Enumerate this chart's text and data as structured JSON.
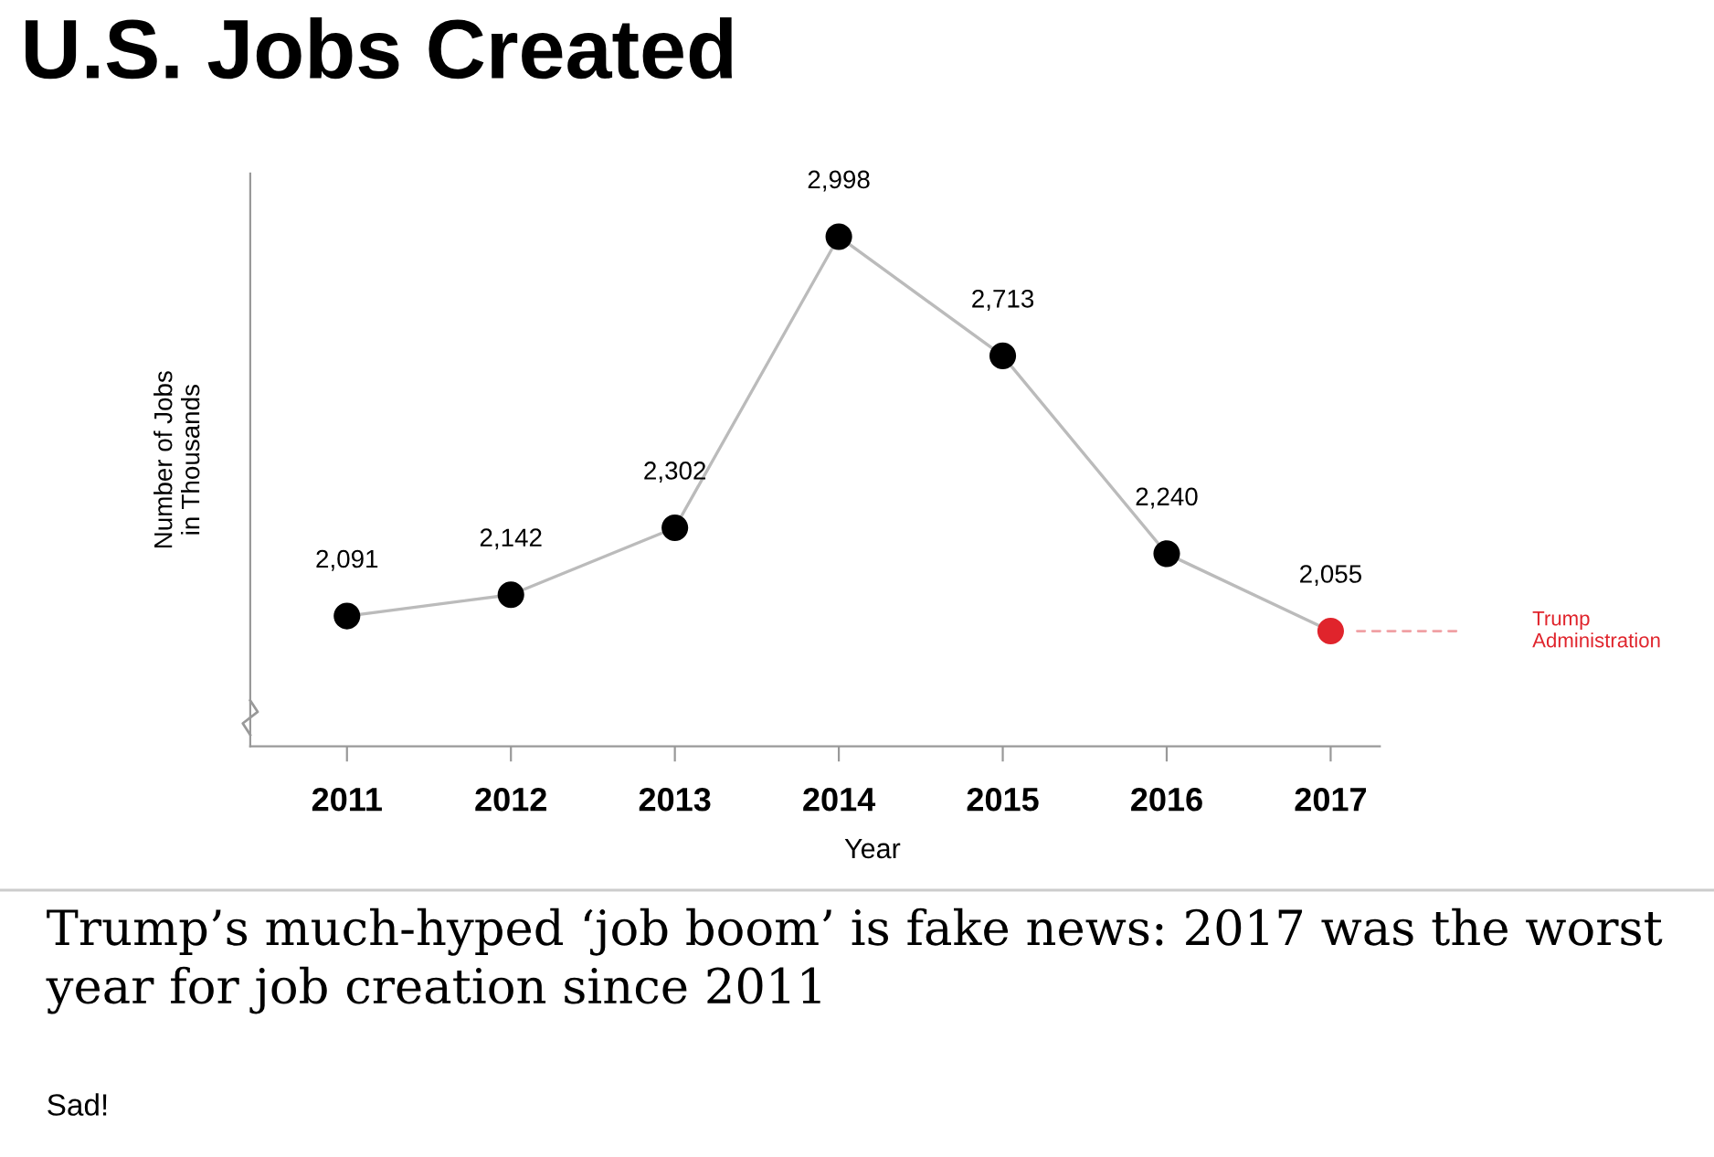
{
  "chart_data": {
    "type": "line",
    "title": "U.S. Jobs Created",
    "xlabel": "Year",
    "ylabel": "Number of Jobs\nin Thousands",
    "categories": [
      "2011",
      "2012",
      "2013",
      "2014",
      "2015",
      "2016",
      "2017"
    ],
    "series": [
      {
        "color": "#bbbbbb",
        "values": [
          2091,
          2142,
          2302,
          2998,
          2713,
          2240,
          2055
        ],
        "colors": [
          "#000000",
          "#000000",
          "#000000",
          "#000000",
          "#000000",
          "#000000",
          "#e0242c"
        ],
        "value_labels": [
          "2,091",
          "2,142",
          "2,302",
          "2,998",
          "2,713",
          "2,240",
          "2,055"
        ]
      }
    ],
    "marker": "circle",
    "line_style": "solid",
    "tick_labels": "x",
    "annotations": [
      "Trump\nAdministration",
      "Trump’s much-hyped ‘job boom’ is fake news: 2017 was the worst year for job creation since 2011",
      "Sad!"
    ]
  }
}
